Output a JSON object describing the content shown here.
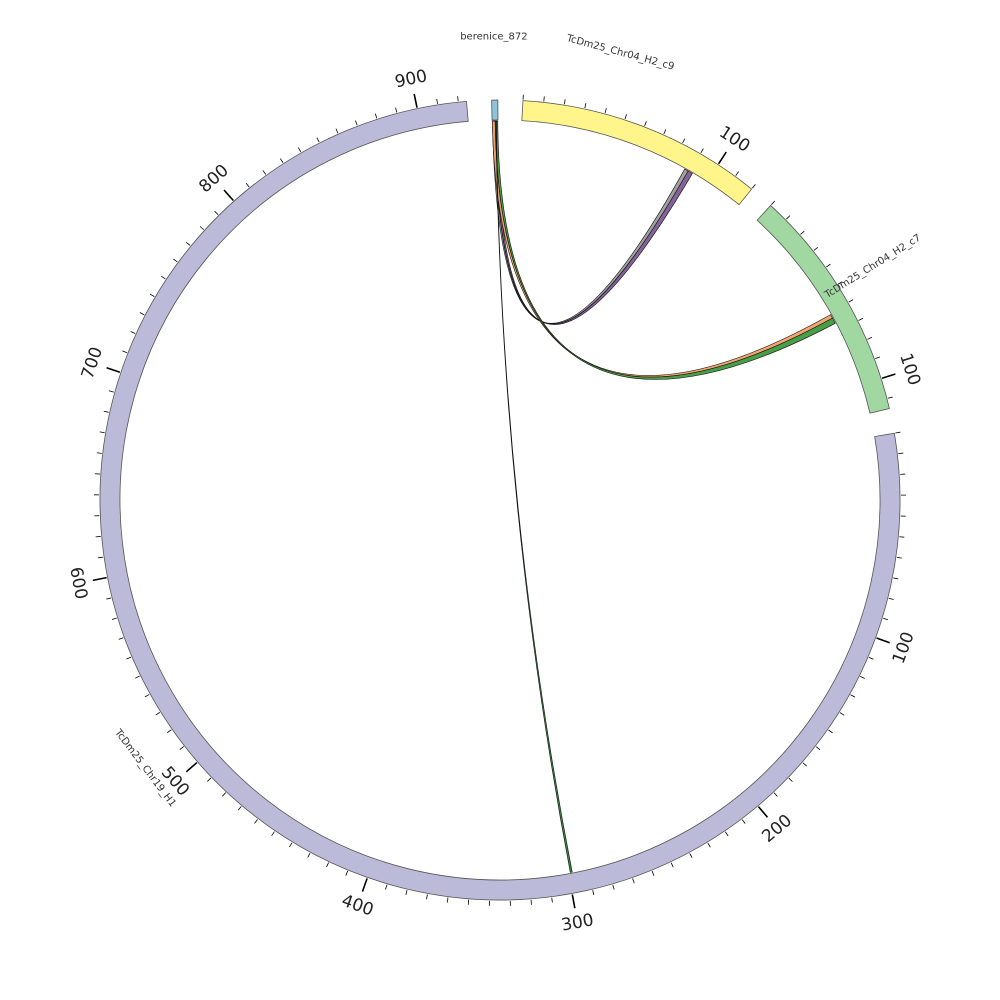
{
  "chart_data": {
    "type": "circos",
    "segments": [
      {
        "id": "berenice",
        "name": "berenice_872",
        "length": 3,
        "color": "#8EC3D8"
      },
      {
        "id": "c9",
        "name": "TcDm25_Chr04_H2_c9",
        "length": 120,
        "color": "#FFF58A"
      },
      {
        "id": "c7",
        "name": "TcDm25_Chr04_H2_c7",
        "length": 115,
        "color": "#A1D7A1"
      },
      {
        "id": "chr19",
        "name": "TcDm25_Chr19_H1",
        "length": 924,
        "color": "#BCBAD9"
      }
    ],
    "tick_labels": {
      "c9": [
        "100"
      ],
      "c7": [
        "100"
      ],
      "chr19": [
        "100",
        "200",
        "300",
        "400",
        "500",
        "600",
        "700",
        "800",
        "900"
      ]
    },
    "links": [
      {
        "from": "berenice",
        "from_pos": [
          0.2,
          1.2
        ],
        "to": "c9",
        "to_pos": [
          87,
          89
        ],
        "color": "#9C9C9C"
      },
      {
        "from": "berenice",
        "from_pos": [
          1.2,
          2.4
        ],
        "to": "c9",
        "to_pos": [
          89,
          91.5
        ],
        "color": "#7D5A95"
      },
      {
        "from": "berenice",
        "from_pos": [
          0.1,
          1.6
        ],
        "to": "c7",
        "to_pos": [
          61,
          63
        ],
        "color": "#F1A068"
      },
      {
        "from": "berenice",
        "from_pos": [
          1.6,
          2.9
        ],
        "to": "c7",
        "to_pos": [
          63,
          66
        ],
        "color": "#3D9A3D"
      },
      {
        "from": "berenice",
        "from_pos": [
          2.0,
          2.2
        ],
        "to": "chr19",
        "to_pos": [
          298,
          299
        ],
        "color": "#2E7D32"
      }
    ]
  }
}
